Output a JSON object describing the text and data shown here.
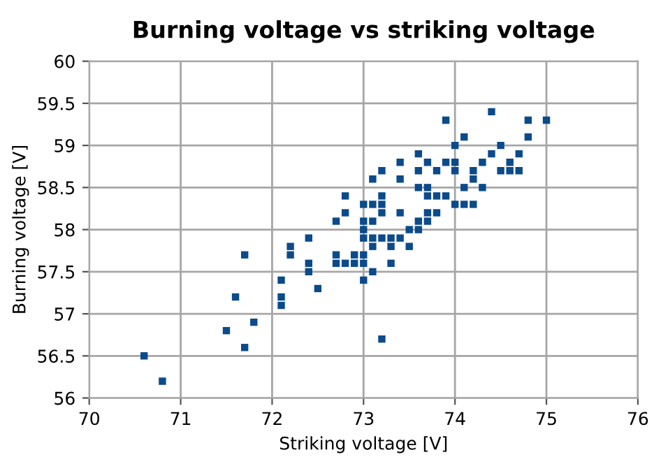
{
  "chart_data": {
    "type": "scatter",
    "title": "Burning voltage vs striking voltage",
    "xlabel": "Striking voltage [V]",
    "ylabel": "Burning voltage [V]",
    "xlim": [
      70,
      76
    ],
    "xticks": [
      70,
      71,
      72,
      73,
      74,
      75,
      76
    ],
    "ylim": [
      56,
      60
    ],
    "yticks": [
      56,
      56.5,
      57,
      57.5,
      58,
      58.5,
      59,
      59.5,
      60
    ],
    "grid": true,
    "marker": "square",
    "series": [
      {
        "color": "#0b4a8b",
        "x": [
          70.6,
          70.8,
          71.7,
          71.6,
          71.5,
          71.8,
          71.7,
          72.1,
          72.1,
          72.1,
          72.2,
          72.2,
          72.4,
          72.4,
          72.4,
          72.5,
          72.7,
          72.8,
          72.8,
          72.7,
          72.7,
          72.8,
          72.9,
          72.9,
          73,
          73,
          73,
          73,
          73,
          73,
          73,
          73.1,
          73.1,
          73.1,
          73.1,
          73.1,
          73.1,
          73.2,
          73.2,
          73.2,
          73.2,
          73.2,
          73.2,
          73.3,
          73.3,
          73.3,
          73.4,
          73.4,
          73.4,
          73.4,
          73.5,
          73.5,
          73.6,
          73.6,
          73.6,
          73.6,
          73.6,
          73.7,
          73.7,
          73.7,
          73.7,
          73.7,
          73.8,
          73.8,
          73.8,
          73.9,
          73.9,
          73.9,
          74,
          74,
          74,
          74,
          74.1,
          74.1,
          74.1,
          74.2,
          74.2,
          74.2,
          74.3,
          74.3,
          74.4,
          74.4,
          74.5,
          74.5,
          74.6,
          74.6,
          74.7,
          74.7,
          74.8,
          74.8,
          75
        ],
        "values": [
          56.5,
          56.2,
          57.7,
          57.2,
          56.8,
          56.9,
          56.6,
          57.4,
          57.2,
          57.1,
          57.8,
          57.7,
          57.9,
          57.6,
          57.5,
          57.3,
          58.1,
          58.2,
          58.4,
          57.7,
          57.6,
          57.6,
          57.7,
          57.6,
          58.3,
          58.1,
          58.0,
          57.9,
          57.7,
          57.6,
          57.4,
          58.6,
          58.3,
          58.1,
          57.9,
          57.8,
          57.5,
          58.7,
          58.4,
          58.3,
          58.2,
          57.9,
          56.7,
          57.9,
          57.8,
          57.6,
          58.8,
          58.6,
          58.2,
          57.9,
          58.0,
          57.8,
          58.9,
          58.7,
          58.5,
          58.1,
          58.0,
          58.8,
          58.5,
          58.4,
          58.2,
          58.1,
          58.7,
          58.4,
          58.2,
          59.3,
          58.8,
          58.4,
          59.0,
          58.8,
          58.7,
          58.3,
          59.1,
          58.5,
          58.3,
          58.7,
          58.6,
          58.3,
          58.8,
          58.5,
          59.4,
          58.9,
          59.0,
          58.7,
          58.8,
          58.7,
          58.9,
          58.7,
          59.3,
          59.1,
          59.3
        ]
      }
    ]
  }
}
